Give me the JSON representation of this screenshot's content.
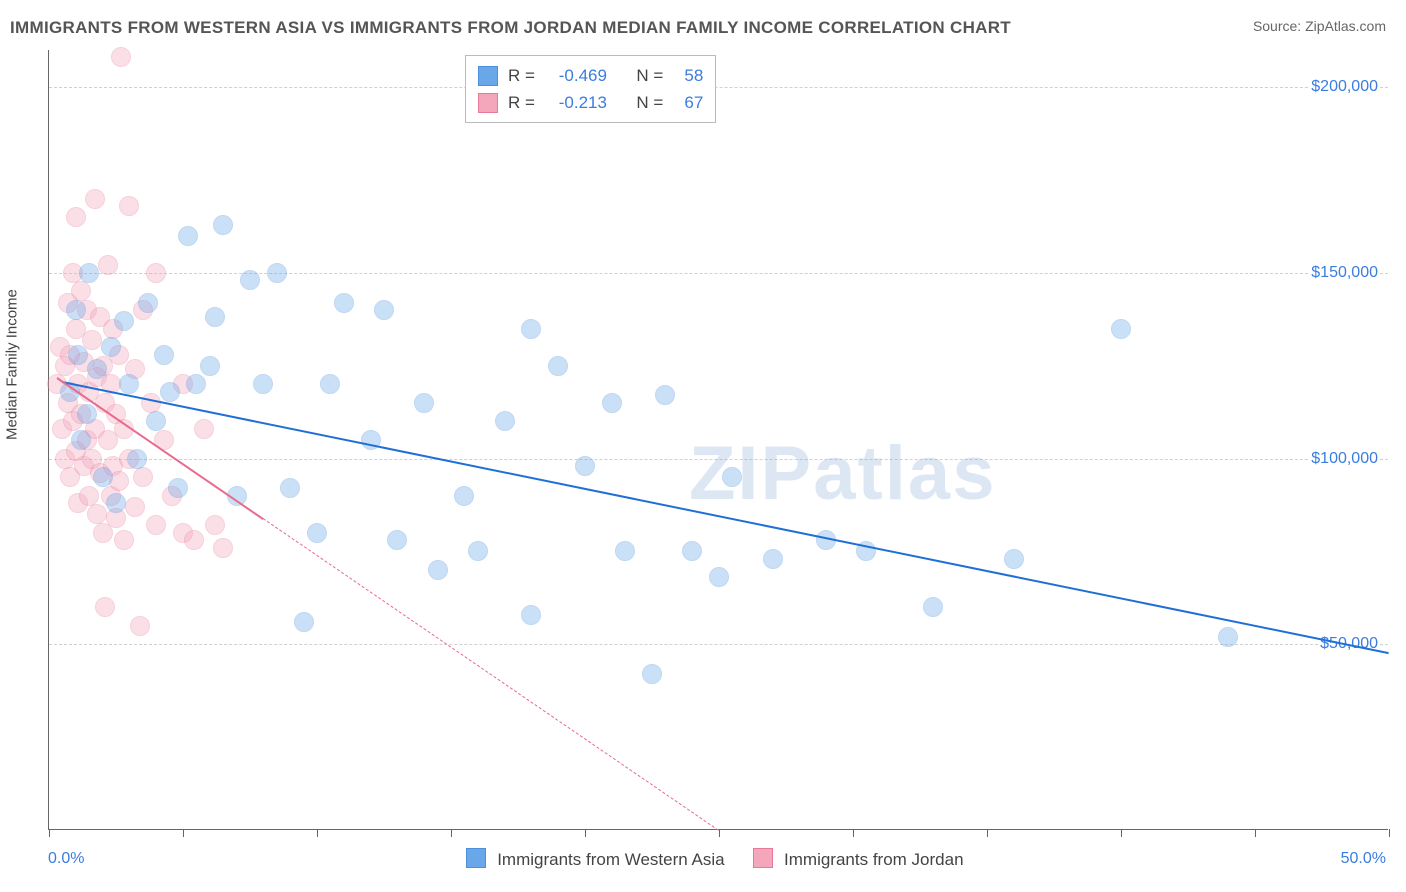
{
  "title": "IMMIGRANTS FROM WESTERN ASIA VS IMMIGRANTS FROM JORDAN MEDIAN FAMILY INCOME CORRELATION CHART",
  "source": "Source: ZipAtlas.com",
  "watermark_a": "ZIP",
  "watermark_b": "atlas",
  "chart": {
    "type": "scatter",
    "background_color": "#ffffff",
    "grid_color": "#d0d0d0",
    "axis_color": "#666666",
    "yaxis_title": "Median Family Income",
    "yaxis_title_fontsize": 15,
    "xlim": [
      0.0,
      50.0
    ],
    "ylim": [
      0,
      210000
    ],
    "x_ticks": [
      0,
      5,
      10,
      15,
      20,
      25,
      30,
      35,
      40,
      45,
      50
    ],
    "x_labels": {
      "min": "0.0%",
      "max": "50.0%"
    },
    "y_gridlines": [
      50000,
      100000,
      150000,
      200000
    ],
    "y_labels": [
      "$50,000",
      "$100,000",
      "$150,000",
      "$200,000"
    ],
    "label_color": "#3a7de0",
    "label_fontsize": 16,
    "marker_radius": 9,
    "marker_fill_opacity": 0.35,
    "marker_stroke_opacity": 0.9,
    "series": [
      {
        "id": "western_asia",
        "name": "Immigrants from Western Asia",
        "color": "#6aa7e8",
        "stroke": "#4b90dd",
        "trend_color": "#1f6fd6",
        "trend_width": 2.5,
        "trend_dash": "solid",
        "R": -0.469,
        "N": 58,
        "trend": {
          "x1": 0.5,
          "y1": 121000,
          "x2": 50.0,
          "y2": 48000
        },
        "points": [
          [
            1.0,
            140000
          ],
          [
            1.2,
            105000
          ],
          [
            1.5,
            150000
          ],
          [
            1.8,
            124000
          ],
          [
            2.0,
            95000
          ],
          [
            2.3,
            130000
          ],
          [
            2.5,
            88000
          ],
          [
            2.8,
            137000
          ],
          [
            3.0,
            120000
          ],
          [
            3.3,
            100000
          ],
          [
            3.7,
            142000
          ],
          [
            4.0,
            110000
          ],
          [
            4.3,
            128000
          ],
          [
            4.8,
            92000
          ],
          [
            5.2,
            160000
          ],
          [
            5.5,
            120000
          ],
          [
            6.0,
            125000
          ],
          [
            6.5,
            163000
          ],
          [
            7.0,
            90000
          ],
          [
            7.5,
            148000
          ],
          [
            8.0,
            120000
          ],
          [
            8.5,
            150000
          ],
          [
            9.0,
            92000
          ],
          [
            9.5,
            56000
          ],
          [
            10.0,
            80000
          ],
          [
            10.5,
            120000
          ],
          [
            11.0,
            142000
          ],
          [
            12.0,
            105000
          ],
          [
            12.5,
            140000
          ],
          [
            13.0,
            78000
          ],
          [
            14.0,
            115000
          ],
          [
            14.5,
            70000
          ],
          [
            15.5,
            90000
          ],
          [
            16.0,
            75000
          ],
          [
            17.0,
            110000
          ],
          [
            18.0,
            58000
          ],
          [
            18.0,
            135000
          ],
          [
            19.0,
            125000
          ],
          [
            20.0,
            98000
          ],
          [
            21.0,
            115000
          ],
          [
            21.5,
            75000
          ],
          [
            22.5,
            42000
          ],
          [
            23.0,
            117000
          ],
          [
            24.0,
            75000
          ],
          [
            25.0,
            68000
          ],
          [
            25.5,
            95000
          ],
          [
            27.0,
            73000
          ],
          [
            29.0,
            78000
          ],
          [
            30.5,
            75000
          ],
          [
            33.0,
            60000
          ],
          [
            40.0,
            135000
          ],
          [
            36.0,
            73000
          ],
          [
            44.0,
            52000
          ],
          [
            0.8,
            118000
          ],
          [
            1.1,
            128000
          ],
          [
            1.4,
            112000
          ],
          [
            6.2,
            138000
          ],
          [
            4.5,
            118000
          ]
        ]
      },
      {
        "id": "jordan",
        "name": "Immigrants from Jordan",
        "color": "#f4a6bb",
        "stroke": "#e77a99",
        "trend_color": "#e86b8d",
        "trend_width": 2.0,
        "trend_dash": "solid_then_dashed",
        "R": -0.213,
        "N": 67,
        "trend": {
          "x1": 0.3,
          "y1": 122000,
          "x2": 25.0,
          "y2": 0,
          "solid_until_x": 8.0
        },
        "points": [
          [
            0.3,
            120000
          ],
          [
            0.4,
            130000
          ],
          [
            0.5,
            108000
          ],
          [
            0.6,
            125000
          ],
          [
            0.6,
            100000
          ],
          [
            0.7,
            142000
          ],
          [
            0.7,
            115000
          ],
          [
            0.8,
            128000
          ],
          [
            0.8,
            95000
          ],
          [
            0.9,
            150000
          ],
          [
            0.9,
            110000
          ],
          [
            1.0,
            135000
          ],
          [
            1.0,
            102000
          ],
          [
            1.1,
            120000
          ],
          [
            1.1,
            88000
          ],
          [
            1.2,
            145000
          ],
          [
            1.2,
            112000
          ],
          [
            1.3,
            126000
          ],
          [
            1.3,
            98000
          ],
          [
            1.4,
            140000
          ],
          [
            1.4,
            105000
          ],
          [
            1.5,
            118000
          ],
          [
            1.5,
            90000
          ],
          [
            1.6,
            132000
          ],
          [
            1.6,
            100000
          ],
          [
            1.7,
            170000
          ],
          [
            1.7,
            108000
          ],
          [
            1.8,
            122000
          ],
          [
            1.8,
            85000
          ],
          [
            1.9,
            138000
          ],
          [
            1.9,
            96000
          ],
          [
            2.0,
            125000
          ],
          [
            2.0,
            80000
          ],
          [
            2.1,
            115000
          ],
          [
            2.1,
            60000
          ],
          [
            2.2,
            152000
          ],
          [
            2.2,
            105000
          ],
          [
            2.3,
            120000
          ],
          [
            2.3,
            90000
          ],
          [
            2.4,
            135000
          ],
          [
            2.4,
            98000
          ],
          [
            2.5,
            112000
          ],
          [
            2.5,
            84000
          ],
          [
            2.6,
            128000
          ],
          [
            2.6,
            94000
          ],
          [
            2.7,
            208000
          ],
          [
            2.8,
            108000
          ],
          [
            2.8,
            78000
          ],
          [
            3.0,
            168000
          ],
          [
            3.0,
            100000
          ],
          [
            3.2,
            124000
          ],
          [
            3.2,
            87000
          ],
          [
            3.5,
            140000
          ],
          [
            3.5,
            95000
          ],
          [
            3.8,
            115000
          ],
          [
            4.0,
            150000
          ],
          [
            4.0,
            82000
          ],
          [
            4.3,
            105000
          ],
          [
            4.6,
            90000
          ],
          [
            5.0,
            120000
          ],
          [
            5.0,
            80000
          ],
          [
            5.4,
            78000
          ],
          [
            5.8,
            108000
          ],
          [
            6.2,
            82000
          ],
          [
            6.5,
            76000
          ],
          [
            3.4,
            55000
          ],
          [
            1.0,
            165000
          ]
        ]
      }
    ],
    "legend_top": {
      "R_label": "R =",
      "N_label": "N ="
    }
  }
}
